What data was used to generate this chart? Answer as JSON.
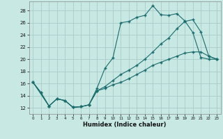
{
  "xlabel": "Humidex (Indice chaleur)",
  "bg_color": "#c8e8e4",
  "line_color": "#1a6b6b",
  "grid_color": "#a8cccc",
  "xlim": [
    -0.5,
    23.5
  ],
  "ylim": [
    11.0,
    29.5
  ],
  "yticks": [
    12,
    14,
    16,
    18,
    20,
    22,
    24,
    26,
    28
  ],
  "xticks": [
    0,
    1,
    2,
    3,
    4,
    5,
    6,
    7,
    8,
    9,
    10,
    11,
    12,
    13,
    14,
    15,
    16,
    17,
    18,
    19,
    20,
    21,
    22,
    23
  ],
  "line1_x": [
    0,
    1,
    2,
    3,
    4,
    5,
    6,
    7,
    8,
    9,
    10,
    11,
    12,
    13,
    14,
    15,
    16,
    17,
    18,
    19,
    20,
    21,
    22,
    23
  ],
  "line1_y": [
    16.2,
    14.5,
    12.3,
    13.5,
    13.2,
    12.1,
    12.2,
    12.5,
    15.2,
    18.5,
    20.2,
    26.0,
    26.2,
    26.9,
    27.2,
    28.8,
    27.3,
    27.2,
    27.5,
    26.3,
    24.4,
    20.3,
    20.0,
    20.0
  ],
  "line2_x": [
    0,
    1,
    2,
    3,
    4,
    5,
    6,
    7,
    8,
    9,
    10,
    11,
    12,
    13,
    14,
    15,
    16,
    17,
    18,
    19,
    20,
    21,
    22,
    23
  ],
  "line2_y": [
    16.2,
    14.5,
    12.3,
    13.5,
    13.2,
    12.1,
    12.2,
    12.5,
    14.8,
    15.2,
    15.8,
    16.2,
    16.8,
    17.5,
    18.2,
    19.0,
    19.5,
    20.0,
    20.5,
    21.0,
    21.2,
    21.2,
    20.5,
    20.0
  ],
  "line3_x": [
    0,
    2,
    3,
    4,
    5,
    6,
    7,
    8,
    9,
    10,
    11,
    12,
    13,
    14,
    15,
    16,
    17,
    18,
    19,
    20,
    21,
    22,
    23
  ],
  "line3_y": [
    16.2,
    12.3,
    13.5,
    13.2,
    12.1,
    12.2,
    12.5,
    14.8,
    15.5,
    16.5,
    17.5,
    18.2,
    19.0,
    20.0,
    21.2,
    22.5,
    23.5,
    25.0,
    26.2,
    26.5,
    24.5,
    20.5,
    20.0
  ]
}
